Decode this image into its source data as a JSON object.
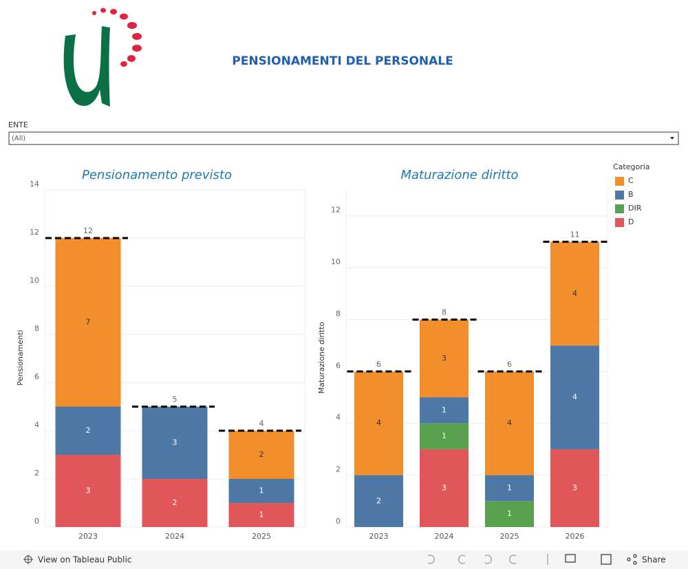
{
  "header": {
    "title": "PENSIONAMENTI DEL PERSONALE"
  },
  "filter": {
    "label": "ENTE",
    "value": "(All)"
  },
  "footer": {
    "view": "View on Tableau Public",
    "share": "Share"
  },
  "chart_data": [
    {
      "type": "stacked_bar",
      "title": "Pensionamento previsto",
      "y_label": "Pensionamenti",
      "categories": [
        "2023",
        "2024",
        "2025"
      ],
      "series": [
        {
          "name": "D",
          "color": "#e15759",
          "values": [
            3,
            2,
            1
          ]
        },
        {
          "name": "B",
          "color": "#4e79a7",
          "values": [
            2,
            3,
            1
          ]
        },
        {
          "name": "C",
          "color": "#f28e2b",
          "values": [
            7,
            null,
            2
          ]
        }
      ],
      "totals": [
        12,
        5,
        4
      ],
      "ylim": [
        0,
        14
      ],
      "yticks": [
        0,
        2,
        4,
        6,
        8,
        10,
        12,
        14
      ],
      "grid": true
    },
    {
      "type": "stacked_bar",
      "title": "Maturazione diritto",
      "y_label": "Maturazione diritto",
      "legend_title": "Categoria",
      "categories": [
        "2023",
        "2024",
        "2025",
        "2026"
      ],
      "series": [
        {
          "name": "D",
          "color": "#e15759",
          "values": [
            null,
            3,
            null,
            3
          ]
        },
        {
          "name": "DIR",
          "color": "#59a14f",
          "values": [
            null,
            1,
            1,
            null
          ]
        },
        {
          "name": "B",
          "color": "#4e79a7",
          "values": [
            2,
            1,
            1,
            4
          ]
        },
        {
          "name": "C",
          "color": "#f28e2b",
          "values": [
            4,
            3,
            4,
            4
          ]
        }
      ],
      "totals": [
        6,
        8,
        6,
        11
      ],
      "ylim": [
        0,
        13
      ],
      "yticks": [
        0,
        2,
        4,
        6,
        8,
        10,
        12
      ],
      "grid": true
    }
  ]
}
